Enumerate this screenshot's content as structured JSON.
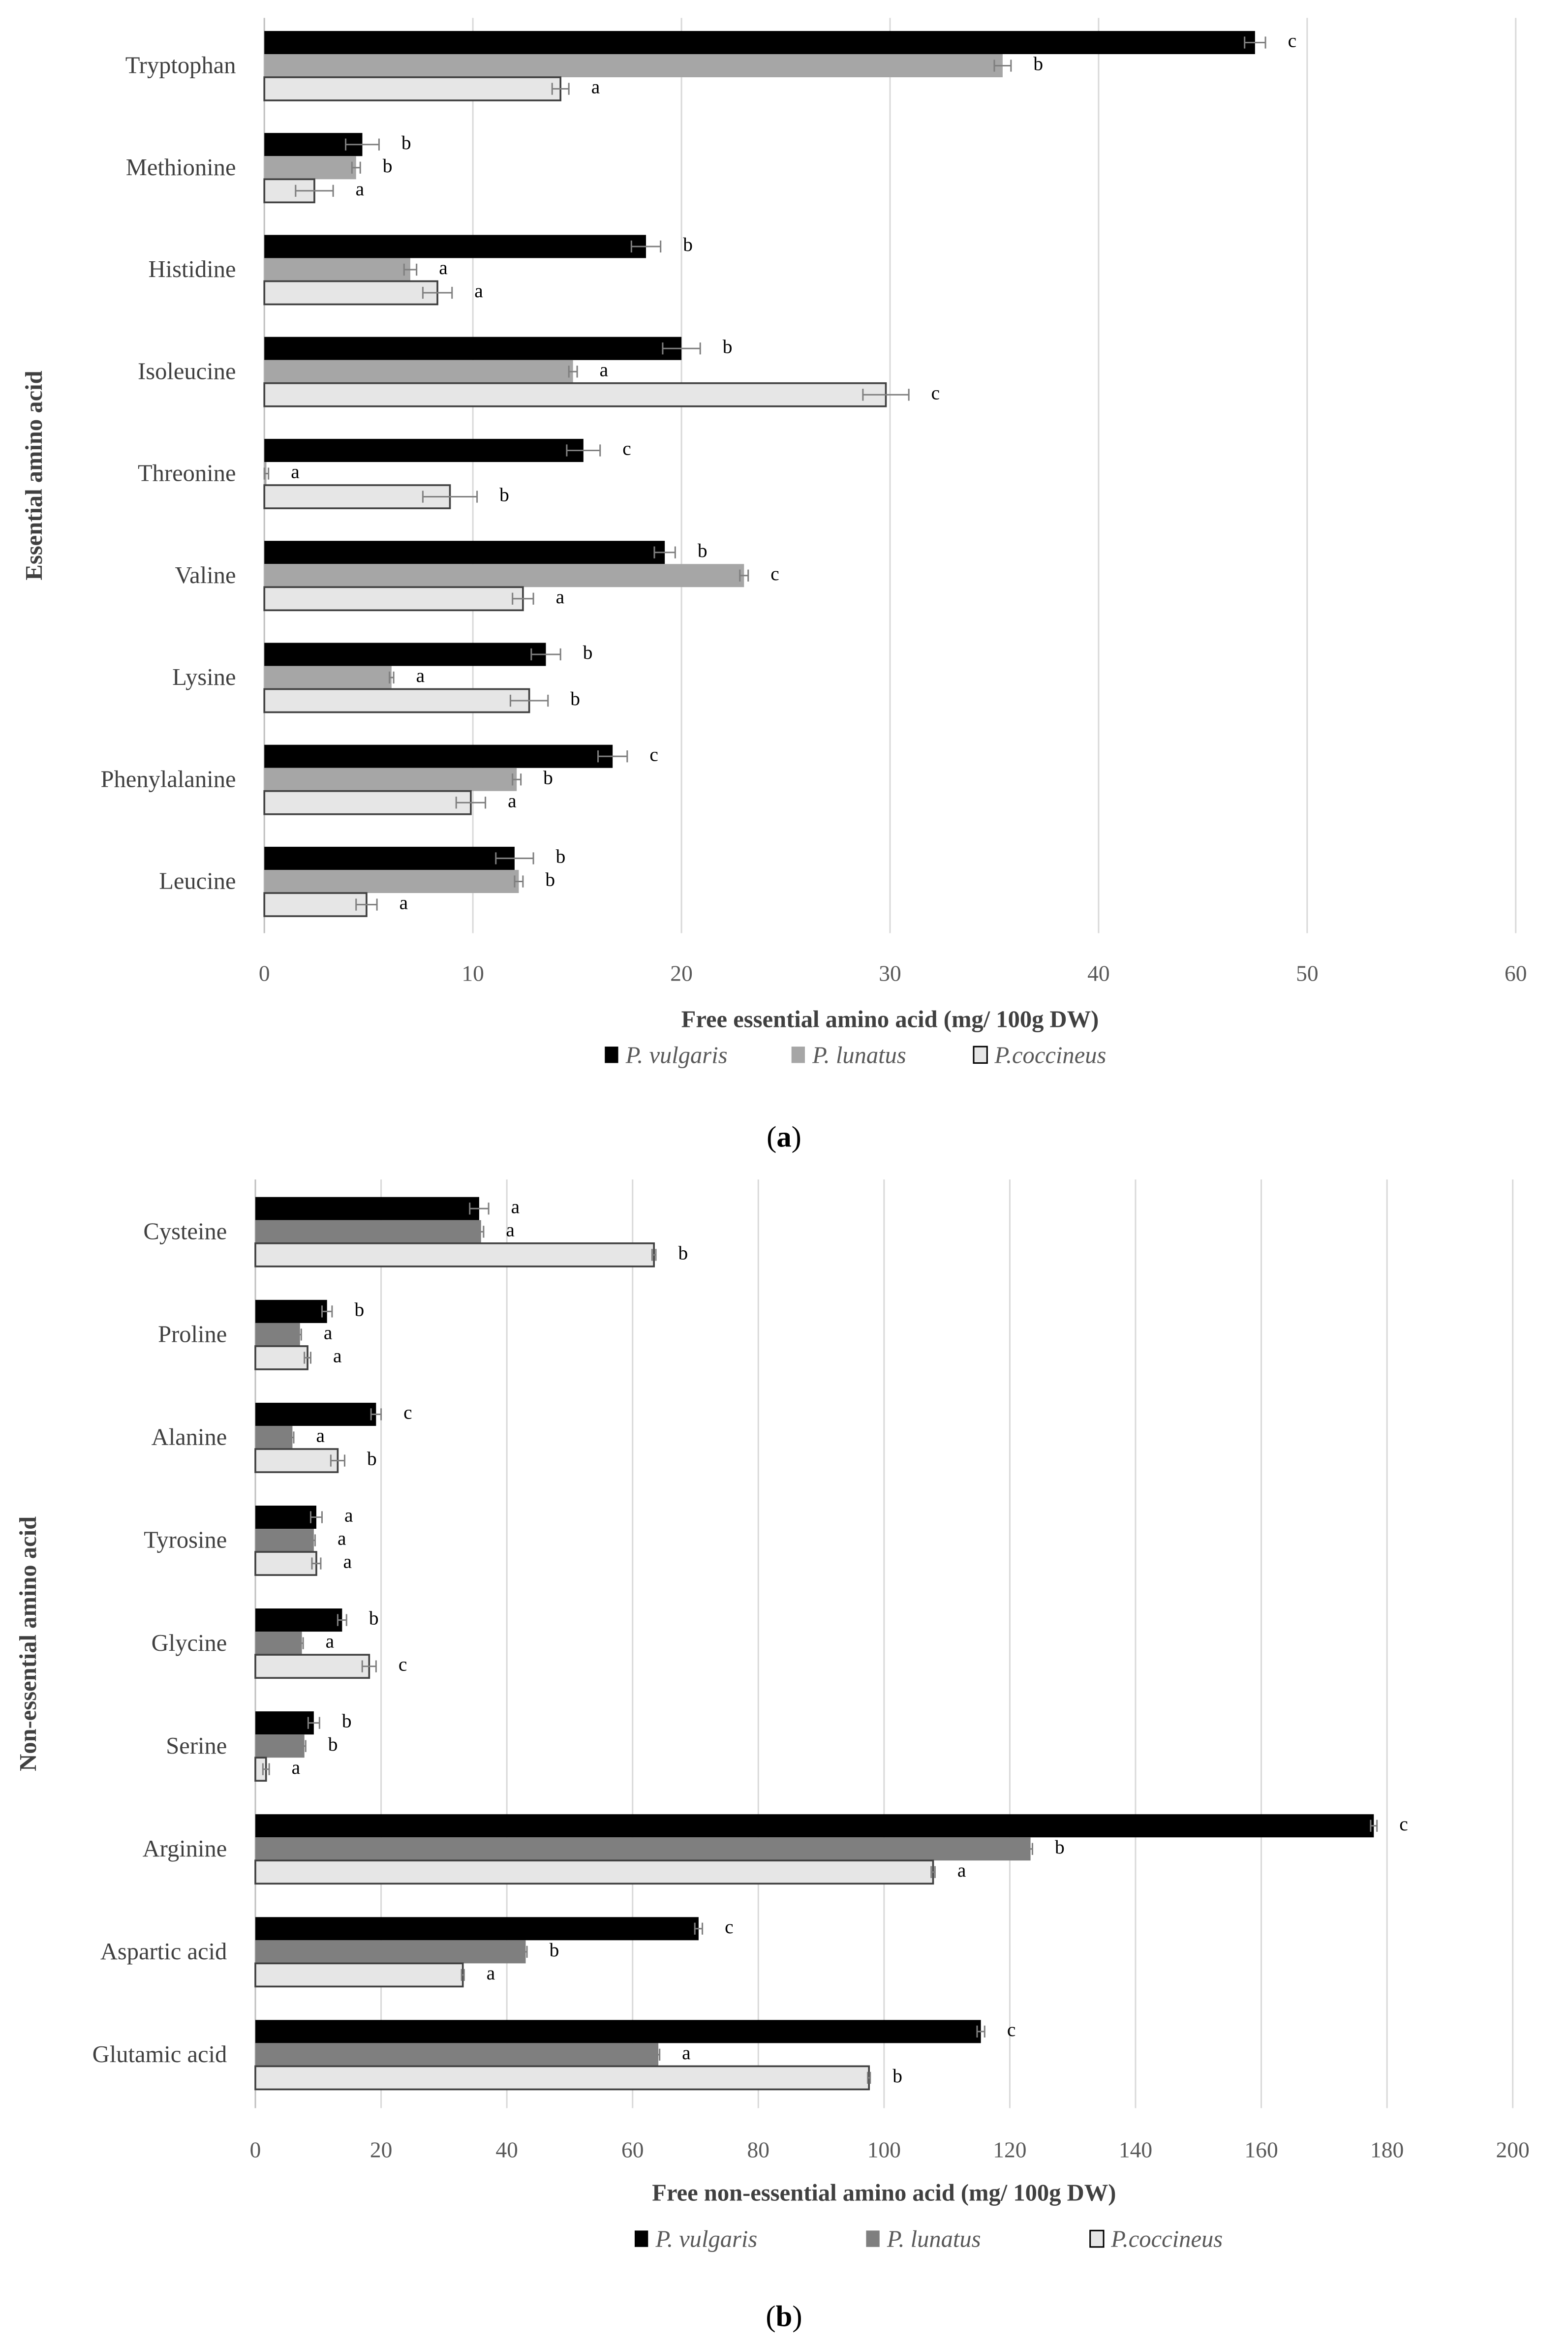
{
  "chart_data": [
    {
      "type": "bar",
      "orientation": "horizontal",
      "panel_label": "(a)",
      "panel_letter": "a",
      "xlabel": "Free essential amino acid (mg/ 100g DW)",
      "ylabel": "Essential amino acid",
      "xlim": [
        0,
        60
      ],
      "xticks": [
        0,
        10,
        20,
        30,
        40,
        50,
        60
      ],
      "grid": true,
      "legend_position": "bottom",
      "categories": [
        "Tryptophan",
        "Methionine",
        "Histidine",
        "Isoleucine",
        "Threonine",
        "Valine",
        "Lysine",
        "Phenylalanine",
        "Leucine"
      ],
      "series": [
        {
          "name": "P. vulgaris",
          "color": "#000000",
          "values": [
            47.5,
            4.7,
            18.3,
            20.0,
            15.3,
            19.2,
            13.5,
            16.7,
            12.0
          ],
          "errors": [
            0.5,
            0.8,
            0.7,
            0.9,
            0.8,
            0.5,
            0.7,
            0.7,
            0.9
          ],
          "letters": [
            "c",
            "b",
            "b",
            "b",
            "c",
            "b",
            "b",
            "c",
            "b"
          ]
        },
        {
          "name": "P. lunatus",
          "color": "#a6a6a6",
          "values": [
            35.4,
            4.4,
            7.0,
            14.8,
            0.1,
            23.0,
            6.1,
            12.1,
            12.2
          ],
          "errors": [
            0.4,
            0.2,
            0.3,
            0.2,
            0.1,
            0.2,
            0.1,
            0.2,
            0.2
          ],
          "letters": [
            "b",
            "b",
            "a",
            "a",
            "a",
            "c",
            "a",
            "b",
            "b"
          ]
        },
        {
          "name": "P.coccineus",
          "color": "#e6e6e6",
          "values": [
            14.2,
            2.4,
            8.3,
            29.8,
            8.9,
            12.4,
            12.7,
            9.9,
            4.9
          ],
          "errors": [
            0.4,
            0.9,
            0.7,
            1.1,
            1.3,
            0.5,
            0.9,
            0.7,
            0.5
          ],
          "letters": [
            "a",
            "a",
            "a",
            "c",
            "b",
            "a",
            "b",
            "a",
            "a"
          ]
        }
      ]
    },
    {
      "type": "bar",
      "orientation": "horizontal",
      "panel_label": "(b)",
      "panel_letter": "b",
      "xlabel": "Free non-essential amino acid (mg/ 100g DW)",
      "ylabel": "Non-essential amino acid",
      "xlim": [
        0,
        200
      ],
      "xticks": [
        0,
        20,
        40,
        60,
        80,
        100,
        120,
        140,
        160,
        180,
        200
      ],
      "grid": true,
      "legend_position": "bottom",
      "categories": [
        "Cysteine",
        "Proline",
        "Alanine",
        "Tyrosine",
        "Glycine",
        "Serine",
        "Arginine",
        "Aspartic acid",
        "Glutamic acid"
      ],
      "series": [
        {
          "name": "P. vulgaris",
          "color": "#000000",
          "values": [
            35.6,
            11.4,
            19.2,
            9.7,
            13.8,
            9.3,
            177.9,
            70.5,
            115.4
          ],
          "errors": [
            1.5,
            0.8,
            0.8,
            0.9,
            0.7,
            0.9,
            0.5,
            0.6,
            0.6
          ],
          "letters": [
            "a",
            "b",
            "c",
            "a",
            "b",
            "b",
            "c",
            "c",
            "c"
          ]
        },
        {
          "name": "P. lunatus",
          "color": "#7f7f7f",
          "values": [
            35.9,
            7.1,
            5.9,
            9.3,
            7.4,
            7.8,
            123.3,
            43.0,
            64.1
          ],
          "errors": [
            0.4,
            0.2,
            0.2,
            0.2,
            0.2,
            0.2,
            0.3,
            0.2,
            0.2
          ],
          "letters": [
            "a",
            "a",
            "a",
            "a",
            "a",
            "b",
            "b",
            "b",
            "a"
          ]
        },
        {
          "name": "P.coccineus",
          "color": "#e6e6e6",
          "values": [
            63.4,
            8.3,
            13.1,
            9.7,
            18.1,
            1.7,
            107.8,
            33.0,
            97.6
          ],
          "errors": [
            0.3,
            0.5,
            1.1,
            0.7,
            1.1,
            0.5,
            0.3,
            0.2,
            0.2
          ],
          "letters": [
            "b",
            "a",
            "b",
            "a",
            "c",
            "a",
            "a",
            "a",
            "b"
          ]
        }
      ]
    }
  ]
}
